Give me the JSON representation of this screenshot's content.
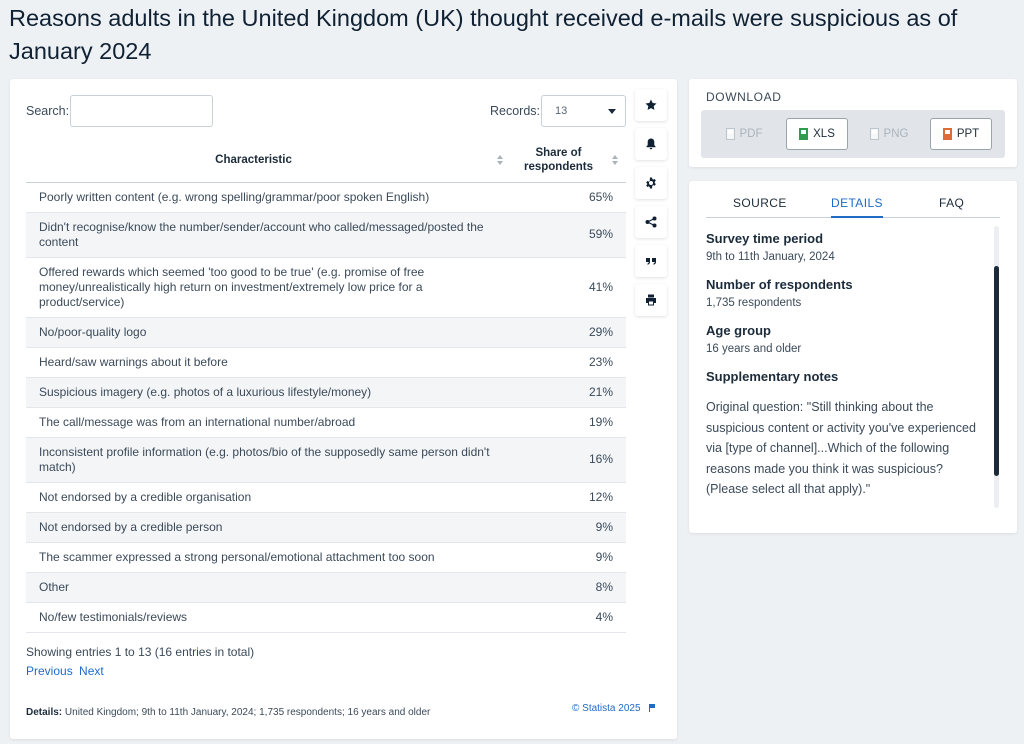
{
  "page": {
    "title": "Reasons adults in the United Kingdom (UK) thought received e-mails were suspicious as of January 2024"
  },
  "controls": {
    "search_label": "Search:",
    "search_value": "",
    "records_label": "Records:",
    "records_value": "13"
  },
  "table": {
    "headers": [
      "Characteristic",
      "Share of respondents"
    ],
    "rows": [
      {
        "label": "Poorly written content (e.g. wrong spelling/grammar/poor spoken English)",
        "value": "65%"
      },
      {
        "label": "Didn't recognise/know the number/sender/account who called/messaged/posted the content",
        "value": "59%"
      },
      {
        "label": "Offered rewards which seemed 'too good to be true' (e.g. promise of free money/unrealistically high return on investment/extremely low price for a product/service)",
        "value": "41%"
      },
      {
        "label": "No/poor-quality logo",
        "value": "29%"
      },
      {
        "label": "Heard/saw warnings about it before",
        "value": "23%"
      },
      {
        "label": "Suspicious imagery (e.g. photos of a luxurious lifestyle/money)",
        "value": "21%"
      },
      {
        "label": "The call/message was from an international number/abroad",
        "value": "19%"
      },
      {
        "label": "Inconsistent profile information (e.g. photos/bio of the supposedly same person didn't match)",
        "value": "16%"
      },
      {
        "label": "Not endorsed by a credible organisation",
        "value": "12%"
      },
      {
        "label": "Not endorsed by a credible person",
        "value": "9%"
      },
      {
        "label": "The scammer expressed a strong personal/emotional attachment too soon",
        "value": "9%"
      },
      {
        "label": "Other",
        "value": "8%"
      },
      {
        "label": "No/few testimonials/reviews",
        "value": "4%"
      }
    ]
  },
  "footer": {
    "entries_text": "Showing entries 1 to 13 (16 entries in total)",
    "previous_label": "Previous",
    "next_label": "Next",
    "details_label": "Details:",
    "details_text": "United Kingdom; 9th to 11th January, 2024; 1,735 respondents; 16 years and older",
    "copyright": "© Statista 2025"
  },
  "toolbar": {
    "icons": [
      "star-icon",
      "bell-icon",
      "gear-icon",
      "share-icon",
      "quote-icon",
      "print-icon"
    ]
  },
  "download": {
    "title": "DOWNLOAD",
    "buttons": [
      {
        "label": "PDF",
        "enabled": false
      },
      {
        "label": "XLS",
        "enabled": true
      },
      {
        "label": "PNG",
        "enabled": false
      },
      {
        "label": "PPT",
        "enabled": true
      }
    ]
  },
  "info": {
    "tabs": [
      "SOURCE",
      "DETAILS",
      "FAQ"
    ],
    "active_tab": "DETAILS",
    "survey_period_heading": "Survey time period",
    "survey_period_value": "9th to 11th January, 2024",
    "respondents_heading": "Number of respondents",
    "respondents_value": "1,735 respondents",
    "age_heading": "Age group",
    "age_value": "16 years and older",
    "notes_heading": "Supplementary notes",
    "notes_text": "Original question: \"Still thinking about the suspicious content or activity you've experienced via [type of channel]...Which of the following reasons made you think it was suspicious? (Please select all that apply).\""
  },
  "colors": {
    "accent": "#1f6bc6",
    "text_dark": "#1c2b3a",
    "stripe": "#f3f5f7",
    "background": "#eef1f4"
  }
}
